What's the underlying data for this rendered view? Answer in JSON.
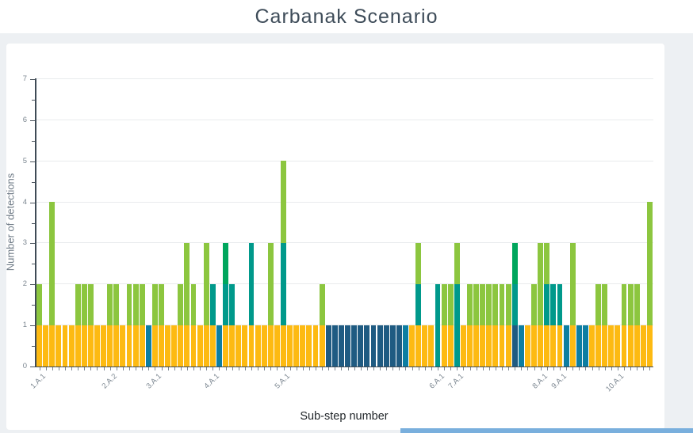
{
  "header": {
    "title": "Carbanak Scenario"
  },
  "chart_data": {
    "type": "bar",
    "stacked": true,
    "title": "Carbanak Scenario",
    "xlabel": "Sub-step number",
    "ylabel": "Number of detections",
    "ylim": [
      0,
      7
    ],
    "yticks": [
      0,
      1,
      2,
      3,
      4,
      5,
      6,
      7
    ],
    "grid": true,
    "legend": "none",
    "palette": {
      "yellow": "#FDBA12",
      "lightgreen": "#8CC63F",
      "teal": "#00998B",
      "emerald": "#00A65D",
      "cerulean": "#0D7EA2",
      "navy": "#1F5B82"
    },
    "bars": [
      {
        "label": "1.A.1",
        "segments": [
          [
            "yellow",
            1
          ],
          [
            "lightgreen",
            1
          ]
        ]
      },
      {
        "label": "",
        "segments": [
          [
            "yellow",
            1
          ]
        ]
      },
      {
        "label": "",
        "segments": [
          [
            "yellow",
            1
          ],
          [
            "lightgreen",
            3
          ]
        ]
      },
      {
        "label": "",
        "segments": [
          [
            "yellow",
            1
          ]
        ]
      },
      {
        "label": "",
        "segments": [
          [
            "yellow",
            1
          ]
        ]
      },
      {
        "label": "",
        "segments": [
          [
            "yellow",
            1
          ]
        ]
      },
      {
        "label": "",
        "segments": [
          [
            "yellow",
            1
          ],
          [
            "lightgreen",
            1
          ]
        ]
      },
      {
        "label": "",
        "segments": [
          [
            "yellow",
            1
          ],
          [
            "lightgreen",
            1
          ]
        ]
      },
      {
        "label": "",
        "segments": [
          [
            "yellow",
            1
          ],
          [
            "lightgreen",
            1
          ]
        ]
      },
      {
        "label": "",
        "segments": [
          [
            "yellow",
            1
          ]
        ]
      },
      {
        "label": "",
        "segments": [
          [
            "yellow",
            1
          ]
        ]
      },
      {
        "label": "2.A.2",
        "segments": [
          [
            "yellow",
            1
          ],
          [
            "lightgreen",
            1
          ]
        ]
      },
      {
        "label": "",
        "segments": [
          [
            "yellow",
            1
          ],
          [
            "lightgreen",
            1
          ]
        ]
      },
      {
        "label": "",
        "segments": [
          [
            "yellow",
            1
          ]
        ]
      },
      {
        "label": "",
        "segments": [
          [
            "yellow",
            1
          ],
          [
            "lightgreen",
            1
          ]
        ]
      },
      {
        "label": "",
        "segments": [
          [
            "yellow",
            1
          ],
          [
            "lightgreen",
            1
          ]
        ]
      },
      {
        "label": "",
        "segments": [
          [
            "yellow",
            1
          ],
          [
            "lightgreen",
            1
          ]
        ]
      },
      {
        "label": "",
        "segments": [
          [
            "cerulean",
            1
          ]
        ]
      },
      {
        "label": "3.A.1",
        "segments": [
          [
            "yellow",
            1
          ],
          [
            "lightgreen",
            1
          ]
        ]
      },
      {
        "label": "",
        "segments": [
          [
            "yellow",
            1
          ],
          [
            "lightgreen",
            1
          ]
        ]
      },
      {
        "label": "",
        "segments": [
          [
            "yellow",
            1
          ]
        ]
      },
      {
        "label": "",
        "segments": [
          [
            "yellow",
            1
          ]
        ]
      },
      {
        "label": "",
        "segments": [
          [
            "yellow",
            1
          ],
          [
            "lightgreen",
            1
          ]
        ]
      },
      {
        "label": "",
        "segments": [
          [
            "yellow",
            1
          ],
          [
            "lightgreen",
            2
          ]
        ]
      },
      {
        "label": "",
        "segments": [
          [
            "yellow",
            1
          ],
          [
            "lightgreen",
            1
          ]
        ]
      },
      {
        "label": "",
        "segments": [
          [
            "yellow",
            1
          ]
        ]
      },
      {
        "label": "",
        "segments": [
          [
            "yellow",
            1
          ],
          [
            "lightgreen",
            2
          ]
        ]
      },
      {
        "label": "4.A.1",
        "segments": [
          [
            "yellow",
            1
          ],
          [
            "teal",
            1
          ]
        ]
      },
      {
        "label": "",
        "segments": [
          [
            "cerulean",
            1
          ]
        ]
      },
      {
        "label": "",
        "segments": [
          [
            "yellow",
            1
          ],
          [
            "teal",
            1
          ],
          [
            "emerald",
            1
          ]
        ]
      },
      {
        "label": "",
        "segments": [
          [
            "yellow",
            1
          ],
          [
            "teal",
            1
          ]
        ]
      },
      {
        "label": "",
        "segments": [
          [
            "yellow",
            1
          ]
        ]
      },
      {
        "label": "",
        "segments": [
          [
            "yellow",
            1
          ]
        ]
      },
      {
        "label": "",
        "segments": [
          [
            "yellow",
            1
          ],
          [
            "teal",
            2
          ]
        ]
      },
      {
        "label": "",
        "segments": [
          [
            "yellow",
            1
          ]
        ]
      },
      {
        "label": "",
        "segments": [
          [
            "yellow",
            1
          ]
        ]
      },
      {
        "label": "",
        "segments": [
          [
            "yellow",
            1
          ],
          [
            "lightgreen",
            2
          ]
        ]
      },
      {
        "label": "",
        "segments": [
          [
            "yellow",
            1
          ]
        ]
      },
      {
        "label": "5.A.1",
        "segments": [
          [
            "yellow",
            1
          ],
          [
            "teal",
            2
          ],
          [
            "lightgreen",
            2
          ]
        ]
      },
      {
        "label": "",
        "segments": [
          [
            "yellow",
            1
          ]
        ]
      },
      {
        "label": "",
        "segments": [
          [
            "yellow",
            1
          ]
        ]
      },
      {
        "label": "",
        "segments": [
          [
            "yellow",
            1
          ]
        ]
      },
      {
        "label": "",
        "segments": [
          [
            "yellow",
            1
          ]
        ]
      },
      {
        "label": "",
        "segments": [
          [
            "yellow",
            1
          ]
        ]
      },
      {
        "label": "",
        "segments": [
          [
            "yellow",
            1
          ],
          [
            "lightgreen",
            1
          ]
        ]
      },
      {
        "label": "",
        "segments": [
          [
            "navy",
            1
          ]
        ]
      },
      {
        "label": "",
        "segments": [
          [
            "navy",
            1
          ]
        ]
      },
      {
        "label": "",
        "segments": [
          [
            "navy",
            1
          ]
        ]
      },
      {
        "label": "",
        "segments": [
          [
            "navy",
            1
          ]
        ]
      },
      {
        "label": "",
        "segments": [
          [
            "navy",
            1
          ]
        ]
      },
      {
        "label": "",
        "segments": [
          [
            "navy",
            1
          ]
        ]
      },
      {
        "label": "",
        "segments": [
          [
            "navy",
            1
          ]
        ]
      },
      {
        "label": "",
        "segments": [
          [
            "navy",
            1
          ]
        ]
      },
      {
        "label": "",
        "segments": [
          [
            "navy",
            1
          ]
        ]
      },
      {
        "label": "",
        "segments": [
          [
            "navy",
            1
          ]
        ]
      },
      {
        "label": "",
        "segments": [
          [
            "navy",
            1
          ]
        ]
      },
      {
        "label": "",
        "segments": [
          [
            "navy",
            1
          ]
        ]
      },
      {
        "label": "",
        "segments": [
          [
            "cerulean",
            1
          ]
        ]
      },
      {
        "label": "",
        "segments": [
          [
            "yellow",
            1
          ]
        ]
      },
      {
        "label": "",
        "segments": [
          [
            "yellow",
            1
          ],
          [
            "teal",
            1
          ],
          [
            "lightgreen",
            1
          ]
        ]
      },
      {
        "label": "",
        "segments": [
          [
            "yellow",
            1
          ]
        ]
      },
      {
        "label": "",
        "segments": [
          [
            "yellow",
            1
          ]
        ]
      },
      {
        "label": "6.A.1",
        "segments": [
          [
            "teal",
            2
          ]
        ]
      },
      {
        "label": "",
        "segments": [
          [
            "yellow",
            1
          ],
          [
            "lightgreen",
            1
          ]
        ]
      },
      {
        "label": "",
        "segments": [
          [
            "yellow",
            1
          ],
          [
            "lightgreen",
            1
          ]
        ]
      },
      {
        "label": "7.A.1",
        "segments": [
          [
            "teal",
            2
          ],
          [
            "lightgreen",
            1
          ]
        ]
      },
      {
        "label": "",
        "segments": [
          [
            "yellow",
            1
          ]
        ]
      },
      {
        "label": "",
        "segments": [
          [
            "yellow",
            1
          ],
          [
            "lightgreen",
            1
          ]
        ]
      },
      {
        "label": "",
        "segments": [
          [
            "yellow",
            1
          ],
          [
            "lightgreen",
            1
          ]
        ]
      },
      {
        "label": "",
        "segments": [
          [
            "yellow",
            1
          ],
          [
            "lightgreen",
            1
          ]
        ]
      },
      {
        "label": "",
        "segments": [
          [
            "yellow",
            1
          ],
          [
            "lightgreen",
            1
          ]
        ]
      },
      {
        "label": "",
        "segments": [
          [
            "yellow",
            1
          ],
          [
            "lightgreen",
            1
          ]
        ]
      },
      {
        "label": "",
        "segments": [
          [
            "yellow",
            1
          ],
          [
            "lightgreen",
            1
          ]
        ]
      },
      {
        "label": "",
        "segments": [
          [
            "yellow",
            1
          ],
          [
            "lightgreen",
            1
          ]
        ]
      },
      {
        "label": "",
        "segments": [
          [
            "navy",
            1
          ],
          [
            "teal",
            1
          ],
          [
            "emerald",
            1
          ]
        ]
      },
      {
        "label": "",
        "segments": [
          [
            "cerulean",
            1
          ]
        ]
      },
      {
        "label": "",
        "segments": [
          [
            "yellow",
            1
          ]
        ]
      },
      {
        "label": "",
        "segments": [
          [
            "yellow",
            1
          ],
          [
            "lightgreen",
            1
          ]
        ]
      },
      {
        "label": "8.A.1",
        "segments": [
          [
            "yellow",
            1
          ],
          [
            "lightgreen",
            2
          ]
        ]
      },
      {
        "label": "",
        "segments": [
          [
            "yellow",
            1
          ],
          [
            "teal",
            1
          ],
          [
            "lightgreen",
            1
          ]
        ]
      },
      {
        "label": "",
        "segments": [
          [
            "yellow",
            1
          ],
          [
            "teal",
            1
          ]
        ]
      },
      {
        "label": "9.A.1",
        "segments": [
          [
            "yellow",
            1
          ],
          [
            "teal",
            1
          ]
        ]
      },
      {
        "label": "",
        "segments": [
          [
            "cerulean",
            1
          ]
        ]
      },
      {
        "label": "",
        "segments": [
          [
            "yellow",
            1
          ],
          [
            "lightgreen",
            2
          ]
        ]
      },
      {
        "label": "",
        "segments": [
          [
            "cerulean",
            1
          ]
        ]
      },
      {
        "label": "",
        "segments": [
          [
            "cerulean",
            1
          ]
        ]
      },
      {
        "label": "",
        "segments": [
          [
            "yellow",
            1
          ]
        ]
      },
      {
        "label": "",
        "segments": [
          [
            "yellow",
            1
          ],
          [
            "lightgreen",
            1
          ]
        ]
      },
      {
        "label": "",
        "segments": [
          [
            "yellow",
            1
          ],
          [
            "lightgreen",
            1
          ]
        ]
      },
      {
        "label": "",
        "segments": [
          [
            "yellow",
            1
          ]
        ]
      },
      {
        "label": "10.A.1",
        "segments": [
          [
            "yellow",
            1
          ]
        ]
      },
      {
        "label": "",
        "segments": [
          [
            "yellow",
            1
          ],
          [
            "lightgreen",
            1
          ]
        ]
      },
      {
        "label": "",
        "segments": [
          [
            "yellow",
            1
          ],
          [
            "lightgreen",
            1
          ]
        ]
      },
      {
        "label": "",
        "segments": [
          [
            "yellow",
            1
          ],
          [
            "lightgreen",
            1
          ]
        ]
      },
      {
        "label": "",
        "segments": [
          [
            "yellow",
            1
          ]
        ]
      },
      {
        "label": "",
        "segments": [
          [
            "yellow",
            1
          ],
          [
            "lightgreen",
            3
          ]
        ]
      }
    ]
  },
  "footer": {
    "strip_color": "#79AFDD"
  }
}
